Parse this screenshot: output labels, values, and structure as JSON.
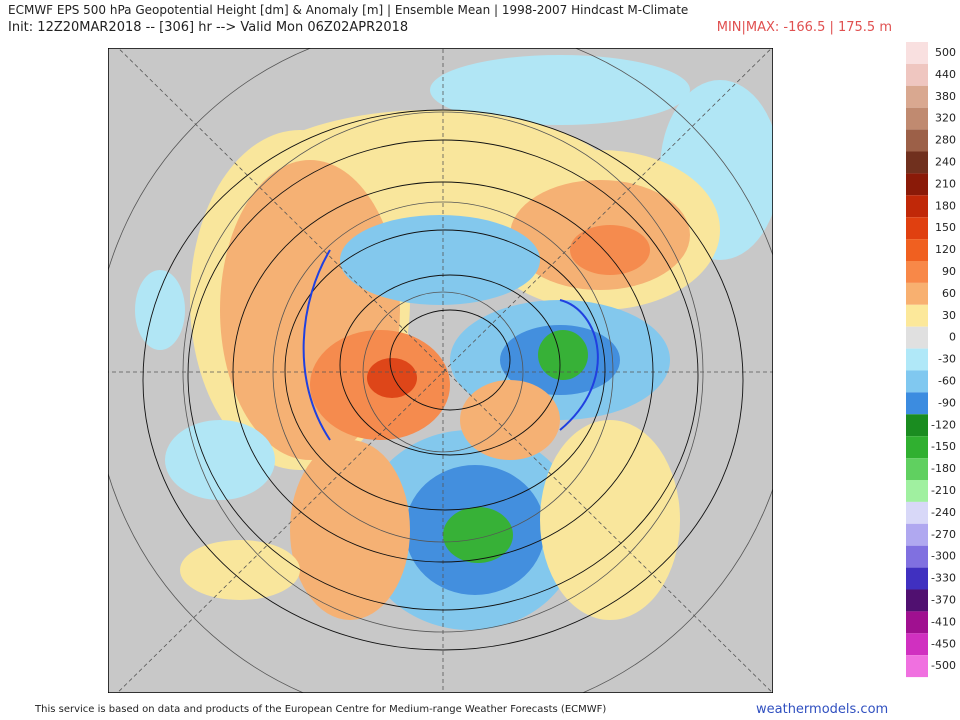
{
  "header": {
    "title": "ECMWF EPS 500 hPa Geopotential Height [dm] & Anomaly [m] | Ensemble Mean | 1998-2007 Hindcast M-Climate",
    "init": "Init: 12Z20MAR2018 -- [306] hr --> Valid Mon 06Z02APR2018",
    "minmax": "MIN|MAX: -166.5 | 175.5 m"
  },
  "colorbar": {
    "levels": [
      500,
      440,
      380,
      320,
      280,
      240,
      210,
      180,
      150,
      120,
      90,
      60,
      30,
      0,
      -30,
      -60,
      -90,
      -120,
      -150,
      -180,
      -210,
      -240,
      -270,
      -300,
      -330,
      -370,
      -410,
      -450,
      -500
    ],
    "colors": [
      "#f9e0e0",
      "#efc6c0",
      "#d9a890",
      "#c08a70",
      "#9c6048",
      "#70301e",
      "#8a1a08",
      "#c02808",
      "#e04010",
      "#f06020",
      "#f88848",
      "#f8b070",
      "#fce89a",
      "#e0e0e0",
      "#b0e8f8",
      "#80c8f0",
      "#3c8ce0",
      "#1a8c20",
      "#30b030",
      "#60d060",
      "#a0f0a0",
      "#d8d8f8",
      "#b0a8f0",
      "#8070e0",
      "#4030c0",
      "#501070",
      "#a01090",
      "#d030c0",
      "#f070e0"
    ]
  },
  "footer": {
    "credit": "This service is based on data and products of the European Centre for Medium-range Weather Forecasts (ECMWF)",
    "site": "weathermodels.com"
  }
}
